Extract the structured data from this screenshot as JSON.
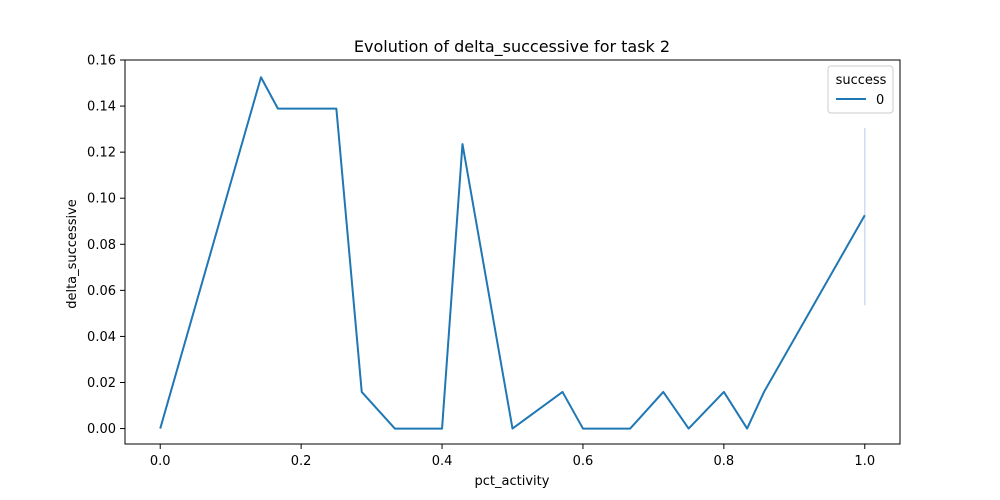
{
  "chart_data": {
    "type": "line",
    "title": "Evolution of delta_successive for task 2",
    "xlabel": "pct_activity",
    "ylabel": "delta_successive",
    "xlim": [
      -0.05,
      1.05
    ],
    "ylim": [
      -0.0067,
      0.16
    ],
    "x_ticks": [
      0.0,
      0.2,
      0.4,
      0.6,
      0.8,
      1.0
    ],
    "x_tick_labels": [
      "0.0",
      "0.2",
      "0.4",
      "0.6",
      "0.8",
      "1.0"
    ],
    "y_ticks": [
      0.0,
      0.02,
      0.04,
      0.06,
      0.08,
      0.1,
      0.12,
      0.14,
      0.16
    ],
    "y_tick_labels": [
      "0.00",
      "0.02",
      "0.04",
      "0.06",
      "0.08",
      "0.10",
      "0.12",
      "0.14",
      "0.16"
    ],
    "grid": false,
    "legend": {
      "title": "success",
      "placement": "top-right",
      "entries": [
        "0"
      ]
    },
    "series": [
      {
        "name": "0",
        "color": "#1f77b4",
        "x": [
          0.0,
          0.143,
          0.167,
          0.25,
          0.286,
          0.333,
          0.4,
          0.429,
          0.5,
          0.571,
          0.6,
          0.667,
          0.714,
          0.75,
          0.8,
          0.833,
          0.857,
          1.0
        ],
        "y": [
          0.0,
          0.1525,
          0.1389,
          0.1389,
          0.0159,
          0.0,
          0.0,
          0.1235,
          0.0,
          0.0159,
          0.0,
          0.0,
          0.0159,
          0.0,
          0.0159,
          0.0,
          0.0159,
          0.0926
        ],
        "ci_band": {
          "x": 1.0,
          "low": 0.0535,
          "high": 0.1305,
          "color": "#aec7e8"
        }
      }
    ]
  }
}
